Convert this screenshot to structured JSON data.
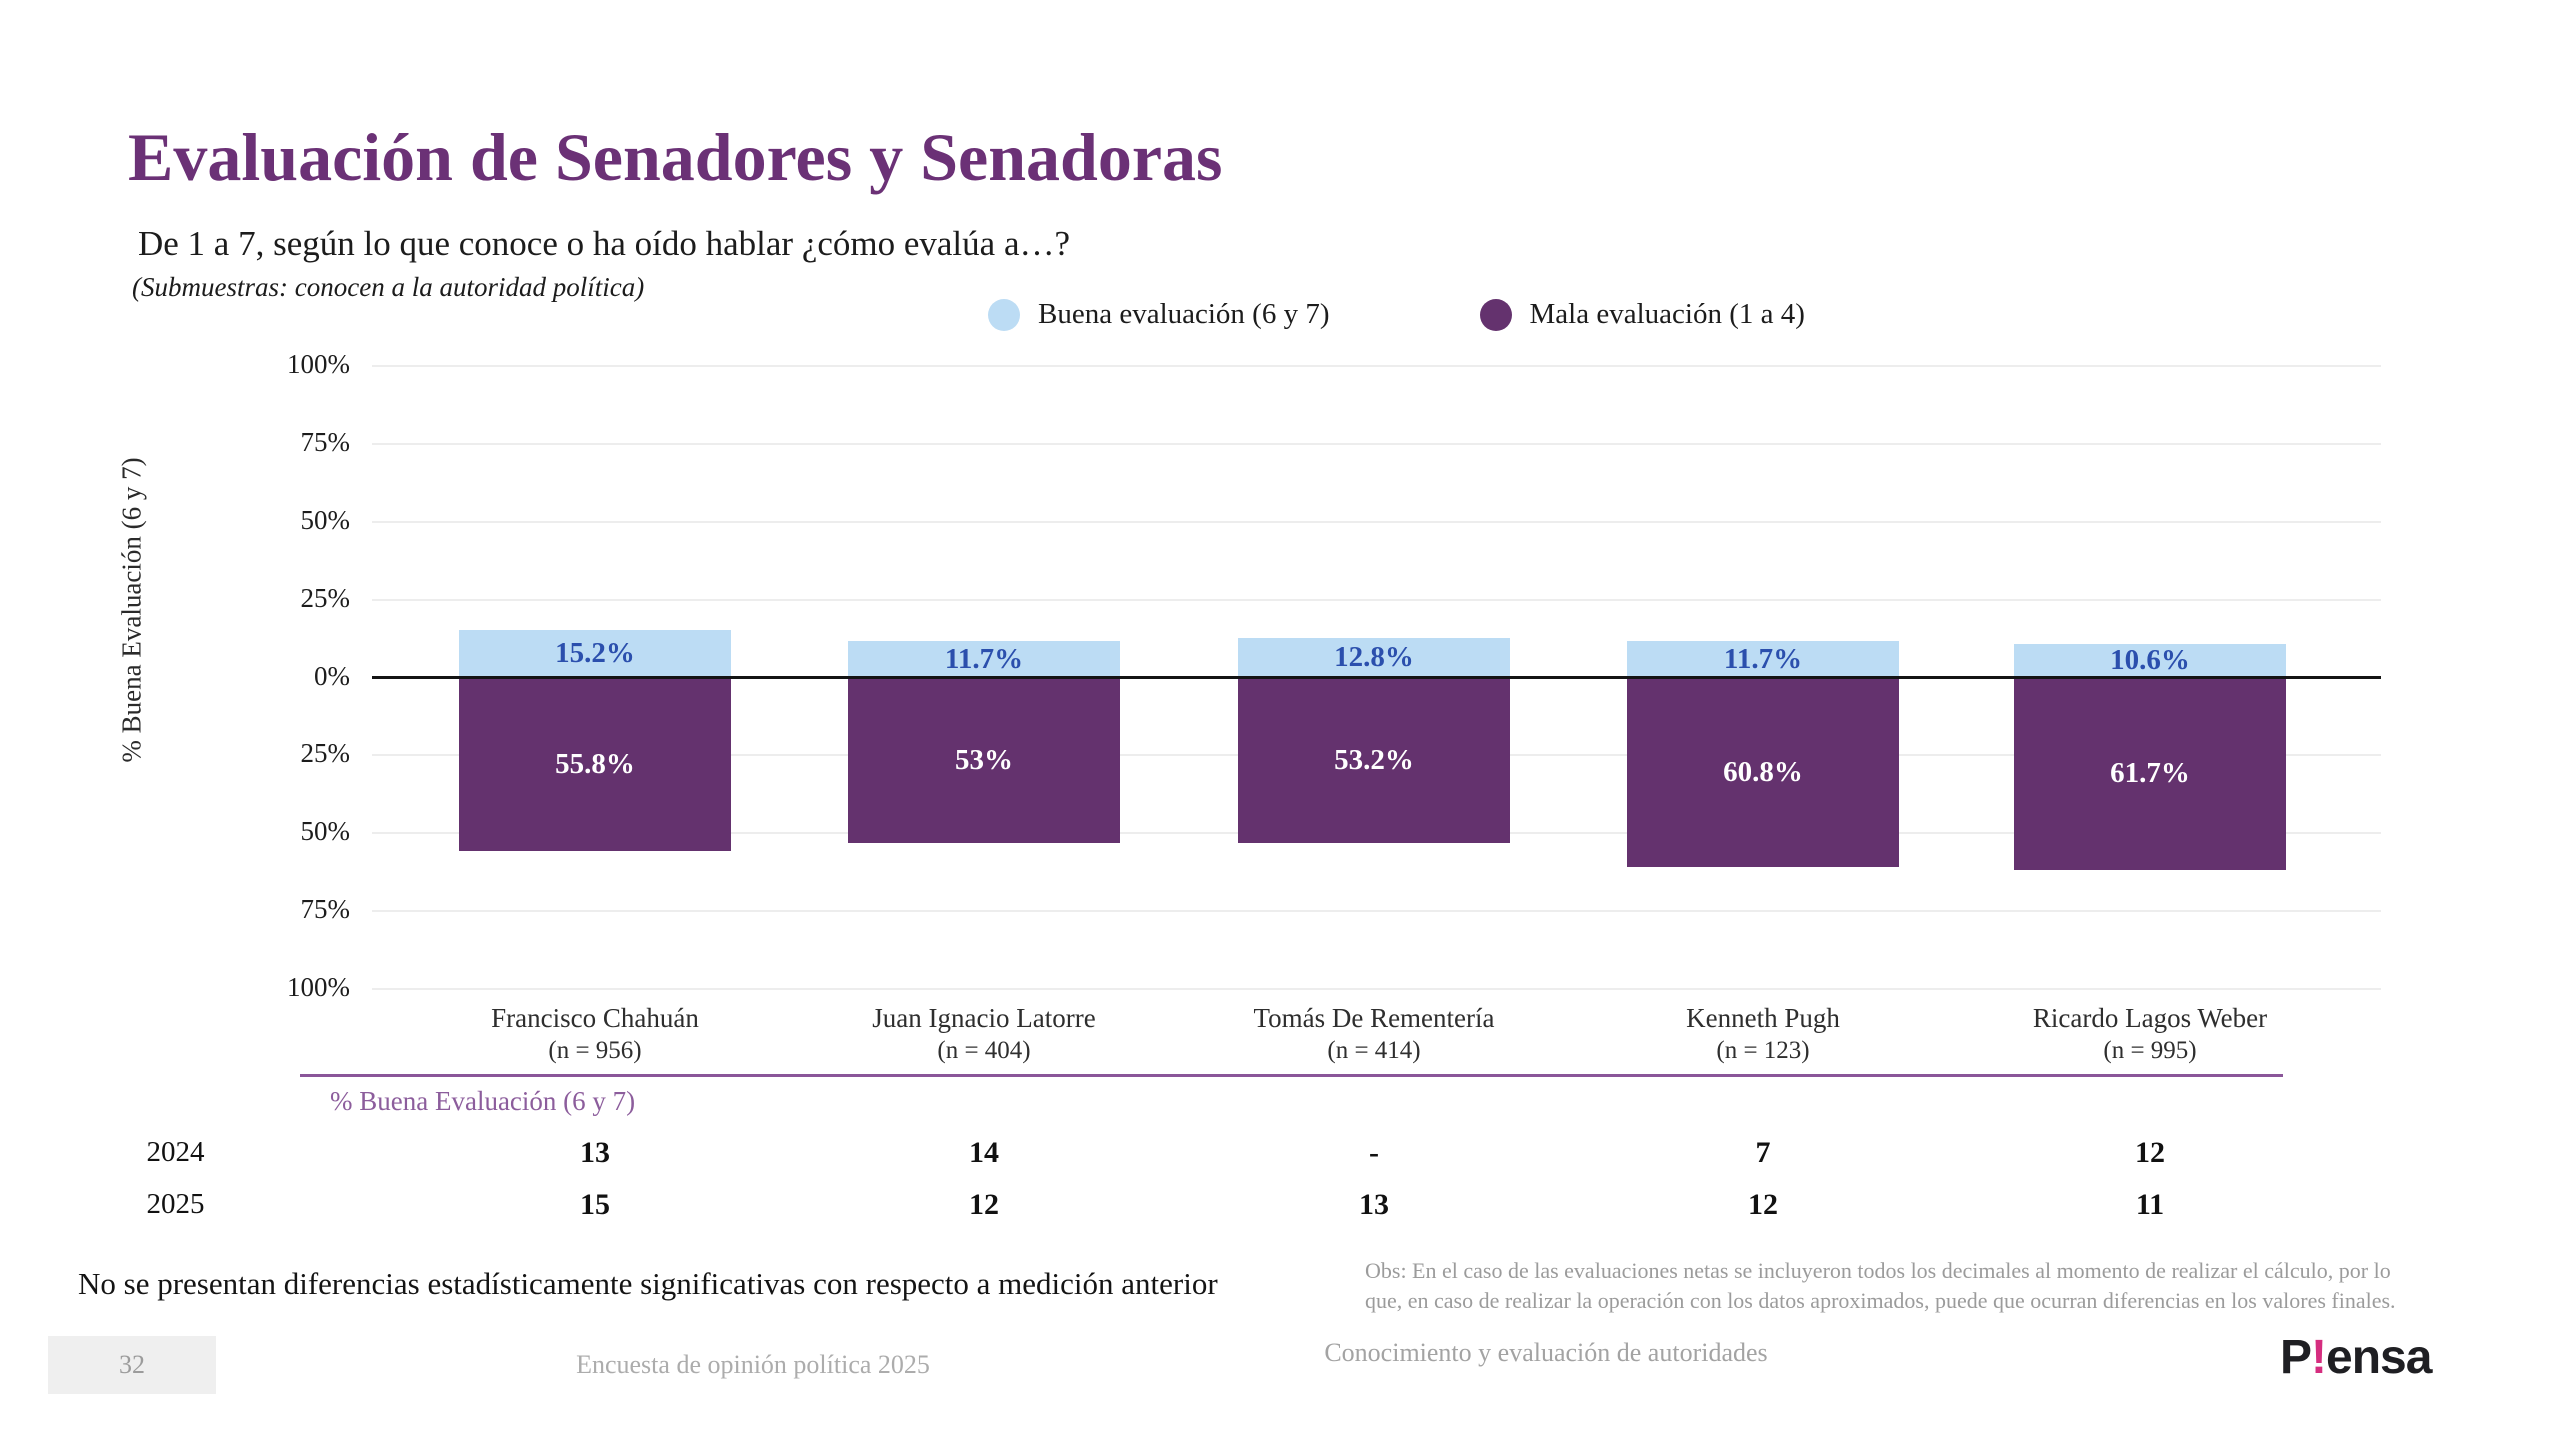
{
  "title": "Evaluación de Senadores y Senadoras",
  "subtitle": "De 1 a 7, según lo que conoce o ha oído hablar ¿cómo evalúa a…?",
  "subsample_note": "(Submuestras: conocen a la autoridad política)",
  "legend": [
    {
      "label": "Buena evaluación (6 y 7)",
      "color": "#bcdcf4"
    },
    {
      "label": "Mala evaluación (1 a 4)",
      "color": "#64326e"
    }
  ],
  "chart_data": {
    "type": "bar",
    "subtype": "diverging-stacked",
    "categories": [
      "Francisco Chahuán",
      "Juan Ignacio Latorre",
      "Tomás De Rementería",
      "Kenneth Pugh",
      "Ricardo Lagos Weber"
    ],
    "sample_sizes": [
      "(n = 956)",
      "(n = 404)",
      "(n = 414)",
      "(n = 123)",
      "(n = 995)"
    ],
    "series": [
      {
        "name": "Buena evaluación (6 y 7)",
        "direction": "up",
        "values": [
          15.2,
          11.7,
          12.8,
          11.7,
          10.6
        ],
        "labels": [
          "15.2%",
          "11.7%",
          "12.8%",
          "11.7%",
          "10.6%"
        ],
        "color": "#bcdcf4",
        "label_color": "#2b4fad"
      },
      {
        "name": "Mala evaluación (1 a 4)",
        "direction": "down",
        "values": [
          55.8,
          53,
          53.2,
          60.8,
          61.7
        ],
        "labels": [
          "55.8%",
          "53%",
          "53.2%",
          "60.8%",
          "61.7%"
        ],
        "color": "#64326e",
        "label_color": "#ffffff"
      }
    ],
    "ylabel": "% Buena Evaluación (6 y 7)",
    "y_ticks": [
      "100%",
      "75%",
      "50%",
      "25%",
      "0%",
      "25%",
      "50%",
      "75%",
      "100%"
    ],
    "ylim": [
      -100,
      100
    ],
    "grid": true,
    "legend_position": "top"
  },
  "history_table": {
    "header": "% Buena Evaluación (6 y 7)",
    "rows": [
      {
        "year": "2024",
        "values": [
          "13",
          "14",
          "-",
          "7",
          "12"
        ]
      },
      {
        "year": "2025",
        "values": [
          "15",
          "12",
          "13",
          "12",
          "11"
        ]
      }
    ]
  },
  "notes": {
    "significance": "No se presentan diferencias estadísticamente significativas con respecto a medición anterior",
    "obs_line1": "Obs: En el caso de las evaluaciones netas se incluyeron todos los decimales al momento de realizar el cálculo, por lo",
    "obs_line2": "que, en caso de realizar la operación con los datos aproximados, puede que ocurran diferencias en los valores finales."
  },
  "footer": {
    "page_number": "32",
    "survey": "Encuesta de opinión política 2025",
    "section": "Conocimiento y evaluación de autoridades",
    "logo_prefix": "P",
    "logo_accent": "!",
    "logo_suffix": "ensa",
    "logo_accent_color": "#d52d7f"
  },
  "colors": {
    "title": "#6b3176",
    "good_bar": "#bcdcf4",
    "bad_bar": "#64326e",
    "good_label_text": "#2b4fad",
    "gridline": "#ededed",
    "zero_line": "#141414",
    "table_rule": "#8a5699",
    "table_header_text": "#8c5d9c"
  }
}
